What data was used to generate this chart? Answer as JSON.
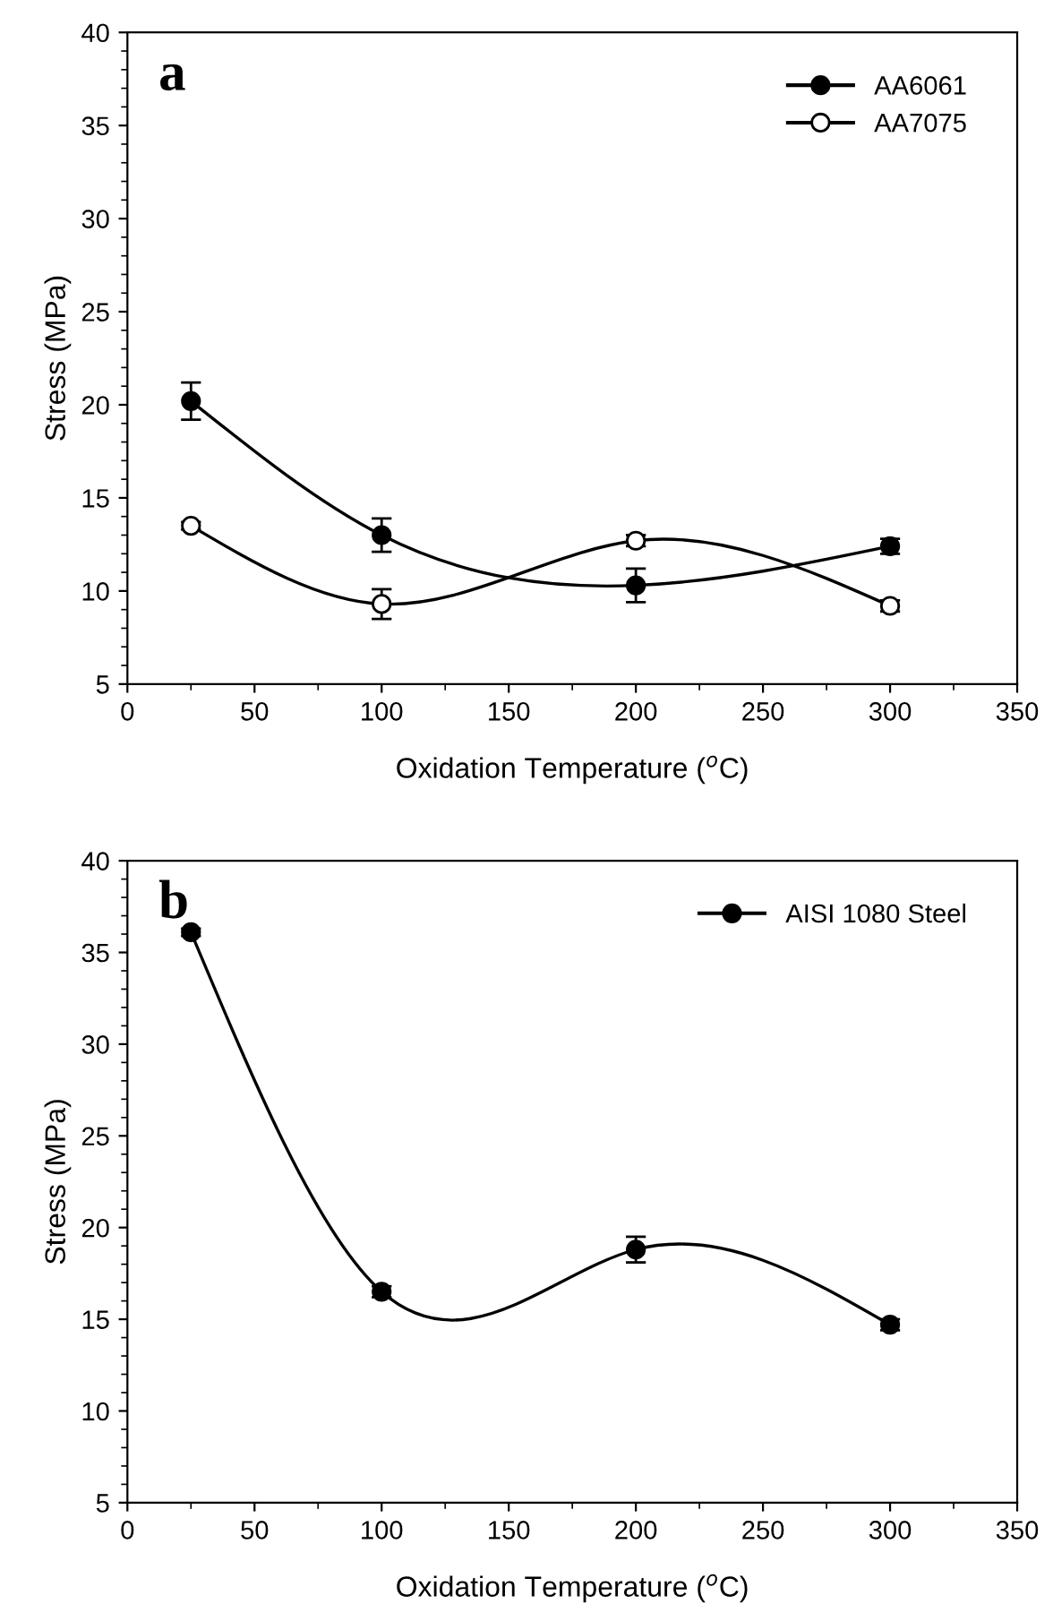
{
  "chart_data": [
    {
      "type": "line",
      "xlabel": "Oxidation Temperature ($^{o}$C)",
      "ylabel": "Stress (MPa)",
      "annotations": [
        "a"
      ],
      "x": [
        25,
        100,
        200,
        300
      ],
      "xlim": [
        0,
        350
      ],
      "xticks": [
        0,
        50,
        100,
        150,
        200,
        250,
        300,
        350
      ],
      "ylim": [
        5,
        40
      ],
      "yticks": [
        5,
        10,
        15,
        20,
        25,
        30,
        35,
        40
      ],
      "marker": "circle",
      "line_style": "solid",
      "legend": "top right",
      "grid": false,
      "series": [
        {
          "name": "AA6061",
          "color": "#000000",
          "values": [
            20.2,
            13.0,
            10.3,
            12.4
          ],
          "errors": [
            1.0,
            0.9,
            0.9,
            0.4
          ]
        },
        {
          "name": "AA7075",
          "color": "#000000",
          "colors": [
            "#ffffff",
            "#ffffff",
            "#ffffff",
            "#ffffff"
          ],
          "values": [
            13.5,
            9.3,
            12.7,
            9.2
          ],
          "errors": [
            0.2,
            0.8,
            0.3,
            0.3
          ]
        }
      ]
    },
    {
      "type": "line",
      "xlabel": "Oxidation Temperature ($^{o}$C)",
      "ylabel": "Stress (MPa)",
      "annotations": [
        "b"
      ],
      "x": [
        25,
        100,
        200,
        300
      ],
      "xlim": [
        0,
        350
      ],
      "xticks": [
        0,
        50,
        100,
        150,
        200,
        250,
        300,
        350
      ],
      "ylim": [
        5,
        40
      ],
      "yticks": [
        5,
        10,
        15,
        20,
        25,
        30,
        35,
        40
      ],
      "marker": "circle",
      "line_style": "solid",
      "legend": "top right",
      "grid": false,
      "series": [
        {
          "name": "AISI 1080 Steel",
          "color": "#000000",
          "values": [
            36.1,
            16.5,
            18.8,
            14.7
          ],
          "errors": [
            0.2,
            0.3,
            0.7,
            0.3
          ]
        }
      ]
    }
  ]
}
